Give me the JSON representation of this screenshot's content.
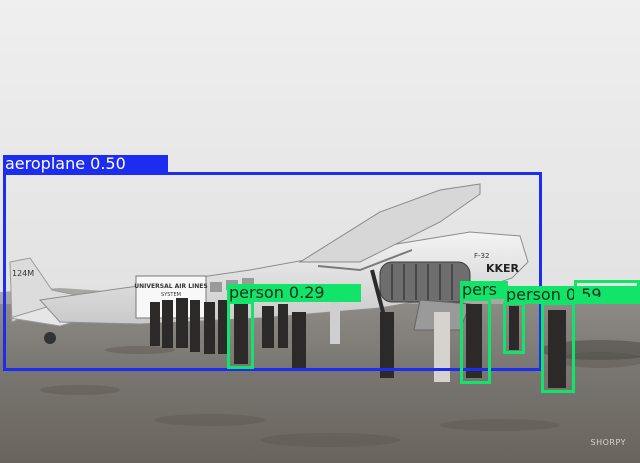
{
  "photo": {
    "aircraft_markings": {
      "registration": "124M",
      "model": "F-32",
      "maker": "KKER"
    },
    "cabin_sign": [
      "UNIVERSAL AIR LINES",
      "SYSTEM"
    ],
    "credit": "SHORPY"
  },
  "detections": [
    {
      "label": "aeroplane 0.50",
      "color": "#1c2cf0"
    },
    {
      "label": "person 0.29",
      "color": "#12e46a"
    },
    {
      "label": "pers",
      "color": "#12e46a"
    },
    {
      "label": "person 0.59",
      "color": "#12e46a"
    },
    {
      "label": "",
      "color": "#12e46a"
    },
    {
      "label": "",
      "color": "#12e46a"
    }
  ]
}
